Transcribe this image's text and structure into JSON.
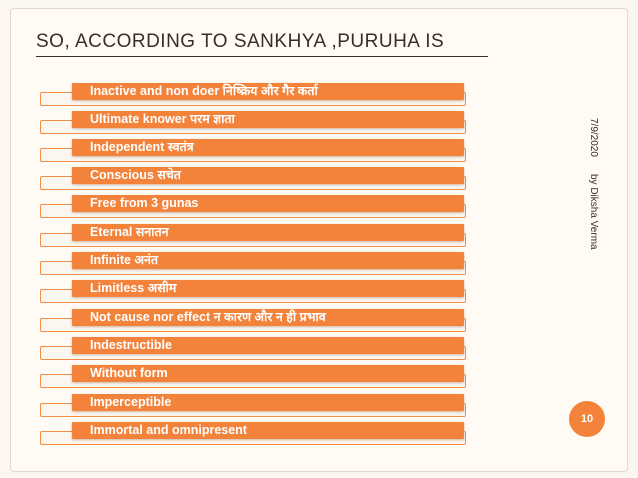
{
  "slide": {
    "title": "SO, ACCORDING TO SANKHYA ,PURUHA IS",
    "date": "7/9/2020",
    "author": "by Diksha Verma",
    "page_number": "10",
    "items": [
      "Inactive and non doer निष्क्रिय और गैर कर्ता",
      "Ultimate knower परम ज्ञाता",
      "Independent स्वतंत्र",
      "Conscious सचेत",
      "Free from 3 gunas",
      "Eternal सनातन",
      "Infinite अनंत",
      "Limitless असीम",
      "Not cause nor effect न कारण और न ही प्रभाव",
      "Indestructible",
      "Without form",
      "Imperceptible",
      "Immortal and omnipresent"
    ]
  },
  "colors": {
    "accent": "#f3823b",
    "background": "#fbf6ef",
    "text": "#3a2d23"
  }
}
